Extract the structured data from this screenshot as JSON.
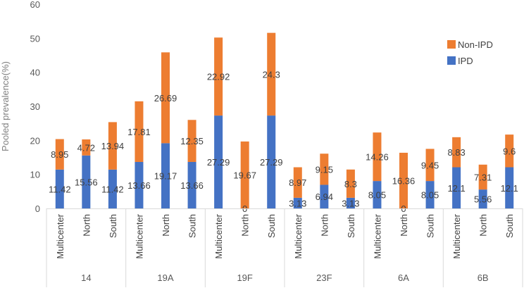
{
  "chart_data": {
    "type": "bar",
    "stacked": true,
    "ylabel": "Pooled prevalence(%)",
    "ylim": [
      0,
      60
    ],
    "yticks": [
      0,
      10,
      20,
      30,
      40,
      50,
      60
    ],
    "grid": false,
    "legend_position": "top-right",
    "groups": [
      {
        "name": "14",
        "categories": [
          "Multicenter",
          "North",
          "South"
        ]
      },
      {
        "name": "19A",
        "categories": [
          "Multicenter",
          "North",
          "South"
        ]
      },
      {
        "name": "19F",
        "categories": [
          "Multicenter",
          "North",
          "South"
        ]
      },
      {
        "name": "23F",
        "categories": [
          "Multicenter",
          "North",
          "South"
        ]
      },
      {
        "name": "6A",
        "categories": [
          "Multicenter",
          "North",
          "South"
        ]
      },
      {
        "name": "6B",
        "categories": [
          "Multicenter",
          "North",
          "South"
        ]
      }
    ],
    "series": [
      {
        "name": "IPD",
        "color": "#4472c4",
        "values": [
          11.42,
          15.56,
          11.42,
          13.66,
          19.17,
          13.66,
          27.29,
          0,
          27.29,
          3.13,
          6.94,
          3.13,
          8.05,
          0,
          8.05,
          12.1,
          5.56,
          12.1
        ]
      },
      {
        "name": "Non-IPD",
        "color": "#ed7d31",
        "values": [
          8.95,
          4.72,
          13.94,
          17.81,
          26.69,
          12.35,
          22.92,
          19.67,
          24.3,
          8.97,
          9.15,
          8.3,
          14.26,
          16.36,
          9.45,
          8.83,
          7.31,
          9.6
        ]
      }
    ],
    "legend_order": [
      "Non-IPD",
      "IPD"
    ]
  }
}
